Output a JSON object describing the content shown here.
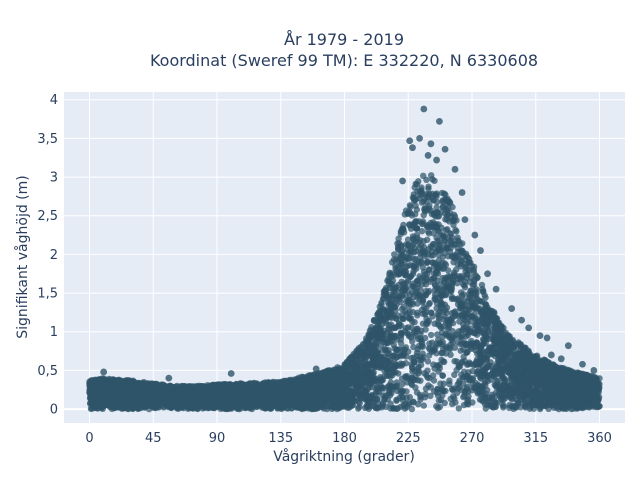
{
  "chart_data": {
    "type": "scatter",
    "title_line1": "År 1979 - 2019",
    "title_line2": "Koordinat (Sweref 99 TM): E 332220, N 6330608",
    "xlabel": "Vågriktning (grader)",
    "ylabel": "Signifikant våghöjd (m)",
    "xlim": [
      -18,
      378
    ],
    "ylim": [
      -0.18,
      4.1
    ],
    "xticks": [
      0,
      45,
      90,
      135,
      180,
      225,
      270,
      315,
      360
    ],
    "xtick_labels": [
      "0",
      "45",
      "90",
      "135",
      "180",
      "225",
      "270",
      "315",
      "360"
    ],
    "yticks": [
      0,
      0.5,
      1,
      1.5,
      2,
      2.5,
      3,
      3.5,
      4
    ],
    "ytick_labels": [
      "0",
      "0,5",
      "1",
      "1,5",
      "2",
      "2,5",
      "3",
      "3,5",
      "4"
    ],
    "grid": true,
    "marker_color": "#2f5469",
    "plot_bgcolor": "#e5ecf6",
    "envelope": {
      "direction": [
        0,
        10,
        20,
        30,
        45,
        60,
        75,
        90,
        105,
        120,
        135,
        150,
        165,
        180,
        195,
        205,
        215,
        225,
        232,
        240,
        248,
        255,
        262,
        270,
        280,
        290,
        300,
        315,
        330,
        345,
        360
      ],
      "upper_height": [
        0.38,
        0.4,
        0.38,
        0.37,
        0.33,
        0.3,
        0.3,
        0.32,
        0.33,
        0.34,
        0.36,
        0.42,
        0.48,
        0.58,
        0.9,
        1.35,
        2.0,
        2.7,
        3.0,
        3.05,
        2.9,
        2.7,
        2.3,
        1.9,
        1.5,
        1.1,
        0.9,
        0.7,
        0.55,
        0.48,
        0.4
      ]
    },
    "highlighted_points": [
      {
        "x": 236,
        "y": 3.88
      },
      {
        "x": 247,
        "y": 3.72
      },
      {
        "x": 226,
        "y": 3.47
      },
      {
        "x": 233,
        "y": 3.5
      },
      {
        "x": 241,
        "y": 3.43
      },
      {
        "x": 228,
        "y": 3.38
      },
      {
        "x": 251,
        "y": 3.36
      },
      {
        "x": 239,
        "y": 3.28
      },
      {
        "x": 245,
        "y": 3.22
      },
      {
        "x": 258,
        "y": 3.1
      },
      {
        "x": 221,
        "y": 2.95
      },
      {
        "x": 263,
        "y": 2.8
      },
      {
        "x": 265,
        "y": 2.45
      },
      {
        "x": 272,
        "y": 2.25
      },
      {
        "x": 276,
        "y": 2.05
      },
      {
        "x": 281,
        "y": 1.75
      },
      {
        "x": 287,
        "y": 1.55
      },
      {
        "x": 298,
        "y": 1.3
      },
      {
        "x": 305,
        "y": 1.15
      },
      {
        "x": 310,
        "y": 1.05
      },
      {
        "x": 318,
        "y": 0.95
      },
      {
        "x": 323,
        "y": 0.92
      },
      {
        "x": 338,
        "y": 0.82
      },
      {
        "x": 326,
        "y": 0.7
      },
      {
        "x": 333,
        "y": 0.65
      },
      {
        "x": 348,
        "y": 0.58
      },
      {
        "x": 356,
        "y": 0.5
      },
      {
        "x": 10,
        "y": 0.48
      },
      {
        "x": 56,
        "y": 0.4
      },
      {
        "x": 100,
        "y": 0.46
      },
      {
        "x": 160,
        "y": 0.52
      }
    ]
  }
}
